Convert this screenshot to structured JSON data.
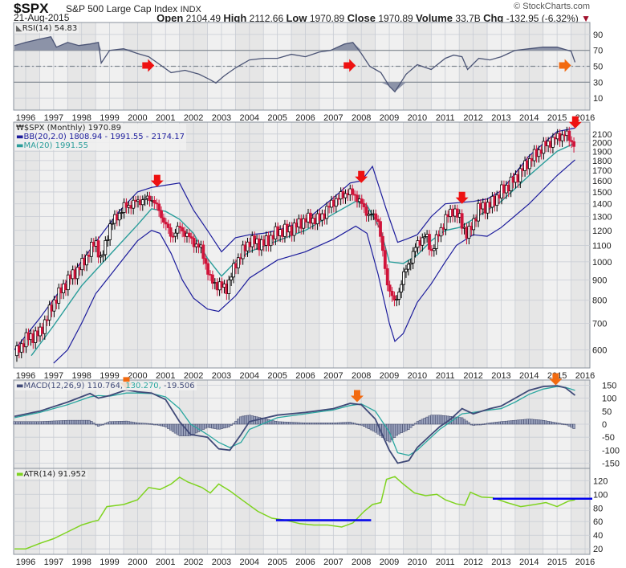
{
  "header": {
    "symbol": "$SPX",
    "name": "S&P 500 Large Cap Index",
    "exchange": "INDX",
    "date": "21-Aug-2015",
    "copyright": "© StockCharts.com",
    "open_label": "Open",
    "open": "2104.49",
    "high_label": "High",
    "high": "2112.66",
    "low_label": "Low",
    "low": "1970.89",
    "close_label": "Close",
    "close": "1970.89",
    "volume_label": "Volume",
    "volume": "33.7B",
    "chg_label": "Chg",
    "chg": "-132.95 (-6.32%)",
    "chg_arrow": "▼"
  },
  "colors": {
    "bg_light": "#f0f0f0",
    "bg_dark": "#e6e6e6",
    "grid": "#c8ccd4",
    "rsi": "#4b5475",
    "bb": "#1c1c9c",
    "ma": "#2a9d9a",
    "up": "#000000",
    "down": "#d0143a",
    "macd": "#404a78",
    "signal": "#2aa7a0",
    "atr": "#7fd320",
    "hline": "#0000ee",
    "arrow_red": "#ee1111",
    "arrow_orange": "#f26a10"
  },
  "legends": {
    "rsi": "RSI(14) 54.83",
    "price": "$SPX (Monthly) 1970.89",
    "bb": "BB(20,2.0) 1808.94 - 1991.55 - 2174.17",
    "ma": "MA(20) 1991.55",
    "macd_a": "MACD(12,26,9) 110.764,",
    "macd_b": "130.270,",
    "macd_c": "-19.506",
    "atr": "ATR(14) 91.952"
  },
  "chart_data": [
    {
      "type": "line",
      "title": "RSI(14)",
      "ylim": [
        -5,
        105
      ],
      "yticks": [
        "90",
        "70",
        "50",
        "30",
        "10"
      ],
      "xticks": [
        "1996",
        "1997",
        "1998",
        "1999",
        "2000",
        "2001",
        "2002",
        "2003",
        "2004",
        "2005",
        "2006",
        "2007",
        "2008",
        "2009",
        "2010",
        "2011",
        "2012",
        "2013",
        "2014",
        "2015",
        "2016"
      ],
      "hlines": [
        70,
        50,
        30
      ],
      "x": [
        1995.6,
        1996.0,
        1996.5,
        1996.9,
        1997.1,
        1997.5,
        1997.9,
        1998.3,
        1998.6,
        1998.7,
        1999.0,
        1999.5,
        2000.0,
        2000.4,
        2000.8,
        2001.2,
        2001.7,
        2002.2,
        2002.6,
        2002.8,
        2003.1,
        2003.5,
        2004.0,
        2004.5,
        2005.0,
        2005.5,
        2006.0,
        2006.5,
        2006.9,
        2007.4,
        2007.7,
        2008.0,
        2008.3,
        2008.7,
        2009.0,
        2009.2,
        2009.6,
        2010.0,
        2010.5,
        2011.0,
        2011.3,
        2011.6,
        2011.8,
        2012.2,
        2012.6,
        2013.0,
        2013.5,
        2014.0,
        2014.5,
        2015.0,
        2015.3,
        2015.5,
        2015.64
      ],
      "values": [
        76,
        80,
        84,
        87,
        74,
        80,
        76,
        78,
        80,
        54,
        70,
        72,
        66,
        62,
        52,
        42,
        45,
        40,
        33,
        29,
        38,
        48,
        58,
        60,
        60,
        65,
        62,
        68,
        70,
        78,
        80,
        66,
        50,
        42,
        25,
        18,
        40,
        52,
        46,
        60,
        64,
        62,
        46,
        60,
        58,
        62,
        70,
        72,
        74,
        74,
        71,
        69,
        55
      ]
    },
    {
      "type": "candlestick",
      "title": "$SPX (Monthly)",
      "scale": "log",
      "ylim": [
        540,
        2250
      ],
      "yticks": [
        "2100",
        "2000",
        "1900",
        "1800",
        "1700",
        "1600",
        "1500",
        "1400",
        "1300",
        "1200",
        "1100",
        "1000",
        "900",
        "800",
        "700",
        "600"
      ],
      "xticks": [
        "1996",
        "1997",
        "1998",
        "1999",
        "2000",
        "2001",
        "2002",
        "2003",
        "2004",
        "2005",
        "2006",
        "2007",
        "2008",
        "2009",
        "2010",
        "2011",
        "2012",
        "2013",
        "2014",
        "2015",
        "2016"
      ],
      "close_x": [
        1995.6,
        1996.0,
        1996.5,
        1997.0,
        1997.5,
        1998.0,
        1998.5,
        1998.7,
        1999.0,
        1999.5,
        2000.0,
        2000.5,
        2000.8,
        2001.2,
        2001.5,
        2001.9,
        2002.3,
        2002.6,
        2002.9,
        2003.2,
        2003.5,
        2004.0,
        2004.5,
        2005.0,
        2005.5,
        2006.0,
        2006.5,
        2007.0,
        2007.5,
        2007.8,
        2008.2,
        2008.6,
        2008.9,
        2009.2,
        2009.5,
        2010.0,
        2010.3,
        2010.5,
        2011.0,
        2011.3,
        2011.6,
        2011.8,
        2012.2,
        2012.6,
        2013.0,
        2013.5,
        2014.0,
        2014.5,
        2015.0,
        2015.3,
        2015.64
      ],
      "close_values": [
        580,
        640,
        660,
        790,
        900,
        980,
        1130,
        1000,
        1230,
        1370,
        1420,
        1450,
        1330,
        1160,
        1220,
        1140,
        1070,
        900,
        870,
        860,
        990,
        1130,
        1110,
        1190,
        1210,
        1280,
        1280,
        1420,
        1500,
        1470,
        1330,
        1280,
        900,
        780,
        920,
        1110,
        1170,
        1060,
        1280,
        1360,
        1250,
        1160,
        1370,
        1390,
        1500,
        1620,
        1800,
        1950,
        2060,
        2100,
        1970
      ],
      "bb_upper_x": [
        1995.6,
        1996.5,
        1997.5,
        1998.5,
        1999.3,
        2000.0,
        2000.5,
        2001.0,
        2001.5,
        2002.0,
        2002.5,
        2003.0,
        2003.5,
        2004.0,
        2004.5,
        2005.0,
        2006.0,
        2007.0,
        2007.6,
        2008.0,
        2008.4,
        2008.9,
        2009.3,
        2009.6,
        2010.0,
        2010.5,
        2011.0,
        2011.5,
        2012.0,
        2012.5,
        2013.0,
        2014.0,
        2015.0,
        2015.64
      ],
      "bb_upper": [
        600,
        720,
        900,
        1120,
        1330,
        1500,
        1540,
        1560,
        1580,
        1350,
        1200,
        1060,
        1150,
        1170,
        1180,
        1200,
        1270,
        1450,
        1580,
        1600,
        1740,
        1350,
        1120,
        1140,
        1170,
        1300,
        1400,
        1410,
        1420,
        1440,
        1510,
        1850,
        2130,
        2174
      ],
      "bb_mid_x": [
        1996.2,
        1997.0,
        1998.0,
        1999.0,
        2000.0,
        2000.5,
        2001.0,
        2001.5,
        2002.0,
        2002.5,
        2003.0,
        2003.5,
        2004.0,
        2005.0,
        2006.0,
        2007.0,
        2007.8,
        2008.2,
        2008.7,
        2009.0,
        2009.5,
        2010.0,
        2010.5,
        2011.0,
        2011.5,
        2012.0,
        2013.0,
        2014.0,
        2015.0,
        2015.64
      ],
      "bb_mid": [
        580,
        690,
        870,
        1040,
        1240,
        1360,
        1340,
        1280,
        1180,
        1020,
        920,
        1000,
        1060,
        1130,
        1200,
        1320,
        1420,
        1390,
        1200,
        1000,
        990,
        1040,
        1130,
        1200,
        1220,
        1280,
        1420,
        1650,
        1900,
        1991
      ],
      "bb_lower_x": [
        1997.0,
        1997.5,
        1998.0,
        1998.5,
        1999.0,
        1999.5,
        2000.0,
        2000.5,
        2000.8,
        2001.2,
        2001.6,
        2002.0,
        2002.5,
        2002.9,
        2003.5,
        2004.0,
        2005.0,
        2006.0,
        2007.0,
        2007.8,
        2008.2,
        2008.6,
        2009.0,
        2009.2,
        2009.5,
        2010.0,
        2010.5,
        2011.0,
        2011.4,
        2012.0,
        2012.5,
        2013.0,
        2014.0,
        2015.0,
        2015.64
      ],
      "bb_lower": [
        555,
        600,
        700,
        830,
        920,
        1020,
        1130,
        1200,
        1180,
        1050,
        900,
        810,
        760,
        750,
        820,
        910,
        1010,
        1060,
        1140,
        1230,
        1180,
        930,
        700,
        630,
        660,
        790,
        880,
        1000,
        1100,
        1170,
        1160,
        1220,
        1400,
        1650,
        1808
      ]
    },
    {
      "type": "line",
      "title": "MACD(12,26,9)",
      "ylim": [
        -170,
        170
      ],
      "yticks": [
        "150",
        "100",
        "50",
        "0",
        "-50",
        "-100",
        "-150"
      ],
      "xticks": [
        "1996",
        "1997",
        "1998",
        "1999",
        "2000",
        "2001",
        "2002",
        "2003",
        "2004",
        "2005",
        "2006",
        "2007",
        "2008",
        "2009",
        "2010",
        "2011",
        "2012",
        "2013",
        "2014",
        "2015",
        "2016"
      ],
      "x": [
        1995.6,
        1996.5,
        1997.5,
        1998.3,
        1998.6,
        1999.0,
        1999.6,
        2000.0,
        2000.5,
        2001.0,
        2001.5,
        2001.9,
        2002.5,
        2002.9,
        2003.3,
        2003.7,
        2004.0,
        2005.0,
        2006.0,
        2007.0,
        2007.6,
        2008.0,
        2008.5,
        2009.0,
        2009.3,
        2009.7,
        2010.0,
        2010.5,
        2010.8,
        2011.2,
        2011.6,
        2012.0,
        2012.6,
        2013.0,
        2013.5,
        2014.0,
        2014.5,
        2015.0,
        2015.3,
        2015.64
      ],
      "macd": [
        30,
        50,
        85,
        118,
        100,
        110,
        132,
        125,
        120,
        95,
        10,
        -40,
        -50,
        -95,
        -100,
        -40,
        10,
        35,
        45,
        60,
        80,
        75,
        20,
        -100,
        -150,
        -140,
        -90,
        -40,
        -10,
        20,
        60,
        40,
        60,
        70,
        100,
        130,
        145,
        148,
        140,
        111
      ],
      "signal": [
        25,
        45,
        75,
        105,
        110,
        108,
        120,
        120,
        118,
        105,
        60,
        0,
        -40,
        -70,
        -90,
        -70,
        -20,
        25,
        40,
        55,
        72,
        78,
        50,
        -30,
        -110,
        -120,
        -100,
        -50,
        -20,
        10,
        40,
        45,
        55,
        60,
        85,
        115,
        135,
        145,
        142,
        130
      ],
      "histogram_x": [
        1995.6,
        1996.5,
        1997.5,
        1998.3,
        1998.6,
        1999.0,
        1999.6,
        2000.0,
        2000.5,
        2001.0,
        2001.5,
        2001.9,
        2002.5,
        2002.9,
        2003.3,
        2003.7,
        2004.0,
        2005.0,
        2006.0,
        2007.0,
        2007.6,
        2008.0,
        2008.5,
        2009.0,
        2009.3,
        2009.7,
        2010.0,
        2010.5,
        2010.8,
        2011.2,
        2011.6,
        2012.0,
        2012.6,
        2013.0,
        2013.5,
        2014.0,
        2014.5,
        2015.0,
        2015.3,
        2015.64
      ],
      "histogram": [
        10,
        10,
        15,
        15,
        -8,
        10,
        12,
        5,
        2,
        -10,
        -45,
        -45,
        -12,
        -20,
        -10,
        30,
        35,
        10,
        5,
        5,
        8,
        -3,
        -30,
        -70,
        -40,
        -20,
        10,
        35,
        35,
        30,
        25,
        -5,
        5,
        10,
        15,
        20,
        15,
        5,
        0,
        -19.5
      ]
    },
    {
      "type": "line",
      "title": "ATR(14)",
      "ylim": [
        12,
        138
      ],
      "yticks": [
        "120",
        "100",
        "80",
        "60",
        "40",
        "20"
      ],
      "xticks": [
        "1996",
        "1997",
        "1998",
        "1999",
        "2000",
        "2001",
        "2002",
        "2003",
        "2004",
        "2005",
        "2006",
        "2007",
        "2008",
        "2009",
        "2010",
        "2011",
        "2012",
        "2013",
        "2014",
        "2015",
        "2016"
      ],
      "x": [
        1995.6,
        1996.0,
        1996.5,
        1997.0,
        1997.5,
        1998.0,
        1998.4,
        1998.6,
        1998.9,
        1999.5,
        2000.0,
        2000.4,
        2000.8,
        2001.2,
        2001.5,
        2001.8,
        2002.3,
        2002.6,
        2002.9,
        2003.3,
        2003.8,
        2004.3,
        2004.8,
        2005.3,
        2005.8,
        2006.3,
        2006.8,
        2007.3,
        2007.7,
        2008.1,
        2008.4,
        2008.7,
        2008.9,
        2009.2,
        2009.5,
        2009.9,
        2010.3,
        2010.7,
        2011.0,
        2011.4,
        2011.7,
        2011.9,
        2012.3,
        2012.7,
        2013.2,
        2013.7,
        2014.2,
        2014.6,
        2015.0,
        2015.4,
        2015.64
      ],
      "values": [
        20,
        20,
        28,
        35,
        45,
        55,
        60,
        62,
        82,
        85,
        92,
        110,
        107,
        115,
        125,
        118,
        110,
        102,
        115,
        105,
        90,
        75,
        65,
        62,
        57,
        55,
        55,
        52,
        58,
        75,
        85,
        88,
        122,
        126,
        115,
        102,
        98,
        100,
        92,
        86,
        84,
        103,
        96,
        95,
        88,
        82,
        85,
        88,
        82,
        90,
        92
      ],
      "hline_segments": [
        {
          "x_start": 2004.95,
          "x_end": 2008.35,
          "value": 62
        },
        {
          "x_start": 2012.7,
          "x_end": 2016.3,
          "value": 93.5
        }
      ]
    }
  ]
}
